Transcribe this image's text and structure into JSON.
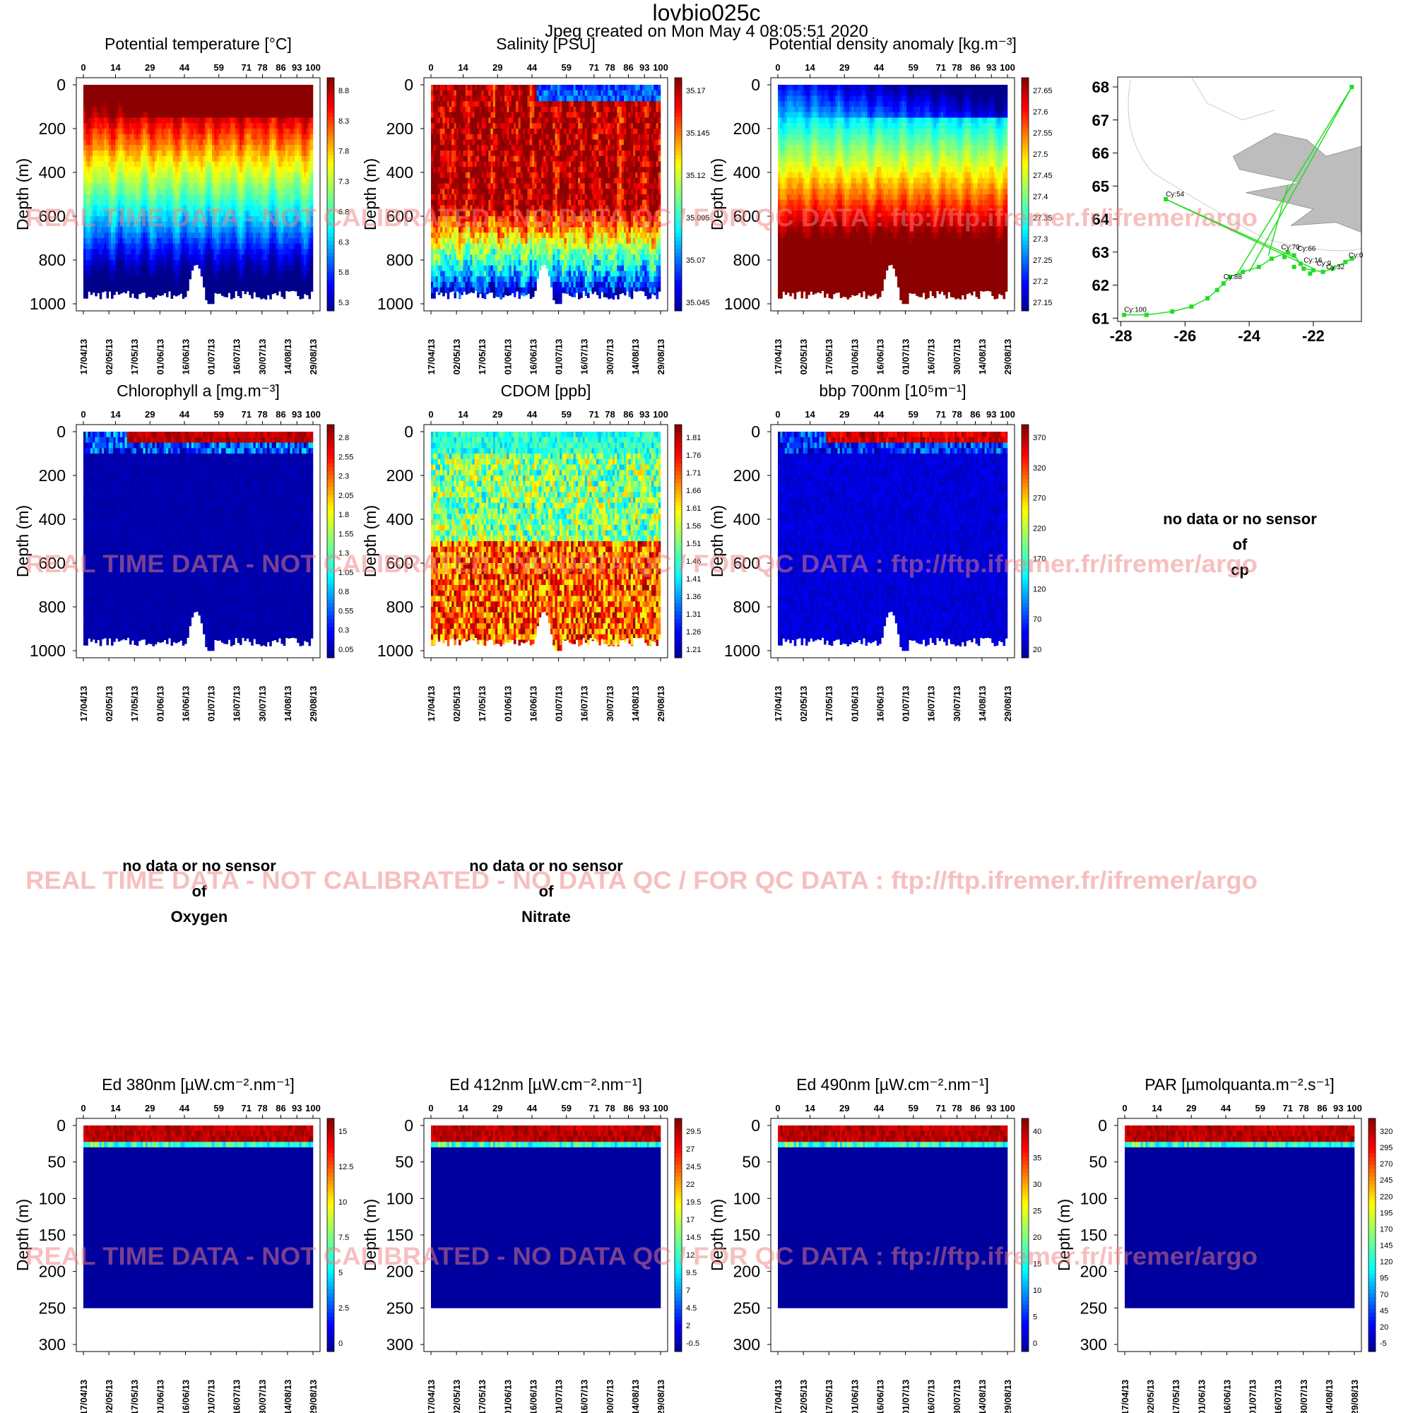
{
  "title": "lovbio025c",
  "subtitle": "Jpeg created on  Mon May  4 08:05:51 2020",
  "watermark": "REAL TIME DATA - NOT CALIBRATED - NO DATA QC   /  FOR QC DATA : ftp://ftp.ifremer.fr/ifremer/argo",
  "colors": {
    "deep": "#00008b",
    "hot": "#8b0000",
    "watermark": "#f08080",
    "track": "#22dd22",
    "land": "#bdbdbd"
  },
  "cycle_ticks": [
    "0",
    "14",
    "29",
    "44",
    "59",
    "71",
    "78",
    "86",
    "93",
    "100"
  ],
  "date_ticks": [
    "17/04/13",
    "02/05/13",
    "17/05/13",
    "01/06/13",
    "16/06/13",
    "01/07/13",
    "16/07/13",
    "30/07/13",
    "14/08/13",
    "29/08/13"
  ],
  "ylabel": "Depth (m)",
  "no_data": {
    "line1": "no data or no sensor",
    "line2": "of"
  },
  "chart_data": [
    {
      "type": "heatmap",
      "id": "temp",
      "title": "Potential temperature [°C]",
      "ylabel": "Depth (m)",
      "ylim": [
        1000,
        0
      ],
      "yticks": [
        "0",
        "200",
        "400",
        "600",
        "800",
        "1000"
      ],
      "colorbar": [
        "5.3",
        "5.8",
        "6.3",
        "6.8",
        "7.3",
        "7.8",
        "8.3",
        "8.8"
      ],
      "pattern": "temp"
    },
    {
      "type": "heatmap",
      "id": "sal",
      "title": "Salinity [PSU]",
      "ylabel": "Depth (m)",
      "ylim": [
        1000,
        0
      ],
      "yticks": [
        "0",
        "200",
        "400",
        "600",
        "800",
        "1000"
      ],
      "colorbar": [
        "35.045",
        "35.07",
        "35.095",
        "35.12",
        "35.145",
        "35.17"
      ],
      "pattern": "sal"
    },
    {
      "type": "heatmap",
      "id": "dens",
      "title": "Potential density anomaly [kg.m⁻³]",
      "ylabel": "Depth (m)",
      "ylim": [
        1000,
        0
      ],
      "yticks": [
        "0",
        "200",
        "400",
        "600",
        "800",
        "1000"
      ],
      "colorbar": [
        "27.15",
        "27.2",
        "27.25",
        "27.3",
        "27.35",
        "27.4",
        "27.45",
        "27.5",
        "27.55",
        "27.6",
        "27.65"
      ],
      "pattern": "dens"
    },
    {
      "type": "heatmap",
      "id": "chl",
      "title": "Chlorophyll a [mg.m⁻³]",
      "ylabel": "Depth (m)",
      "ylim": [
        1000,
        0
      ],
      "yticks": [
        "0",
        "200",
        "400",
        "600",
        "800",
        "1000"
      ],
      "colorbar": [
        "0.05",
        "0.3",
        "0.55",
        "0.8",
        "1.05",
        "1.3",
        "1.55",
        "1.8",
        "2.05",
        "2.3",
        "2.55",
        "2.8"
      ],
      "pattern": "chl"
    },
    {
      "type": "heatmap",
      "id": "cdom",
      "title": "CDOM  [ppb]",
      "ylabel": "Depth (m)",
      "ylim": [
        1000,
        0
      ],
      "yticks": [
        "0",
        "200",
        "400",
        "600",
        "800",
        "1000"
      ],
      "colorbar": [
        "1.21",
        "1.26",
        "1.31",
        "1.36",
        "1.41",
        "1.46",
        "1.51",
        "1.56",
        "1.61",
        "1.66",
        "1.71",
        "1.76",
        "1.81"
      ],
      "pattern": "cdom"
    },
    {
      "type": "heatmap",
      "id": "bbp",
      "title": "bbp 700nm [10⁵m⁻¹]",
      "ylabel": "Depth (m)",
      "ylim": [
        1000,
        0
      ],
      "yticks": [
        "0",
        "200",
        "400",
        "600",
        "800",
        "1000"
      ],
      "colorbar": [
        "20",
        "70",
        "120",
        "170",
        "220",
        "270",
        "320",
        "370"
      ],
      "pattern": "bbp"
    },
    {
      "type": "heatmap",
      "id": "ed380",
      "title": "Ed 380nm [µW.cm⁻².nm⁻¹]",
      "ylabel": "Depth (m)",
      "ylim": [
        300,
        0
      ],
      "yticks": [
        "0",
        "50",
        "100",
        "150",
        "200",
        "250",
        "300"
      ],
      "colorbar": [
        "0",
        "2.5",
        "5",
        "7.5",
        "10",
        "12.5",
        "15"
      ],
      "pattern": "light"
    },
    {
      "type": "heatmap",
      "id": "ed412",
      "title": "Ed 412nm [µW.cm⁻².nm⁻¹]",
      "ylabel": "Depth (m)",
      "ylim": [
        300,
        0
      ],
      "yticks": [
        "0",
        "50",
        "100",
        "150",
        "200",
        "250",
        "300"
      ],
      "colorbar": [
        "-0.5",
        "2",
        "4.5",
        "7",
        "9.5",
        "12",
        "14.5",
        "17",
        "19.5",
        "22",
        "24.5",
        "27",
        "29.5"
      ],
      "pattern": "light"
    },
    {
      "type": "heatmap",
      "id": "ed490",
      "title": "Ed 490nm [µW.cm⁻².nm⁻¹]",
      "ylabel": "Depth (m)",
      "ylim": [
        300,
        0
      ],
      "yticks": [
        "0",
        "50",
        "100",
        "150",
        "200",
        "250",
        "300"
      ],
      "colorbar": [
        "0",
        "5",
        "10",
        "15",
        "20",
        "25",
        "30",
        "35",
        "40"
      ],
      "pattern": "light"
    },
    {
      "type": "heatmap",
      "id": "par",
      "title": "PAR [µmolquanta.m⁻².s⁻¹]",
      "ylabel": "Depth (m)",
      "ylim": [
        300,
        0
      ],
      "yticks": [
        "0",
        "50",
        "100",
        "150",
        "200",
        "250",
        "300"
      ],
      "colorbar": [
        "-5",
        "20",
        "45",
        "70",
        "95",
        "120",
        "145",
        "170",
        "195",
        "220",
        "245",
        "270",
        "295",
        "320"
      ],
      "pattern": "light"
    }
  ],
  "map": {
    "xticks": [
      "-28",
      "-26",
      "-24",
      "-22"
    ],
    "yticks": [
      "61",
      "62",
      "63",
      "64",
      "65",
      "66",
      "67",
      "68"
    ],
    "xlim": [
      -28.1,
      -20.5
    ],
    "ylim": [
      60.9,
      68.3
    ],
    "labels": [
      {
        "text": "Cy:100",
        "lon": -27.9,
        "lat": 61.1
      },
      {
        "text": "Cy:88",
        "lon": -24.8,
        "lat": 62.1
      },
      {
        "text": "Cy:54",
        "lon": -26.6,
        "lat": 64.6
      },
      {
        "text": "Cy:70",
        "lon": -23.0,
        "lat": 63.0
      },
      {
        "text": "Cy:66",
        "lon": -22.5,
        "lat": 62.95
      },
      {
        "text": "Cy:16",
        "lon": -22.3,
        "lat": 62.6
      },
      {
        "text": "Cy:9",
        "lon": -21.9,
        "lat": 62.5
      },
      {
        "text": "Cy:32",
        "lon": -21.6,
        "lat": 62.4
      },
      {
        "text": "Cy:0",
        "lon": -20.9,
        "lat": 62.75
      }
    ]
  },
  "empty_panels": [
    {
      "id": "cp",
      "param": "cp"
    },
    {
      "id": "oxy",
      "param": "Oxygen"
    },
    {
      "id": "nitrate",
      "param": "Nitrate"
    }
  ]
}
